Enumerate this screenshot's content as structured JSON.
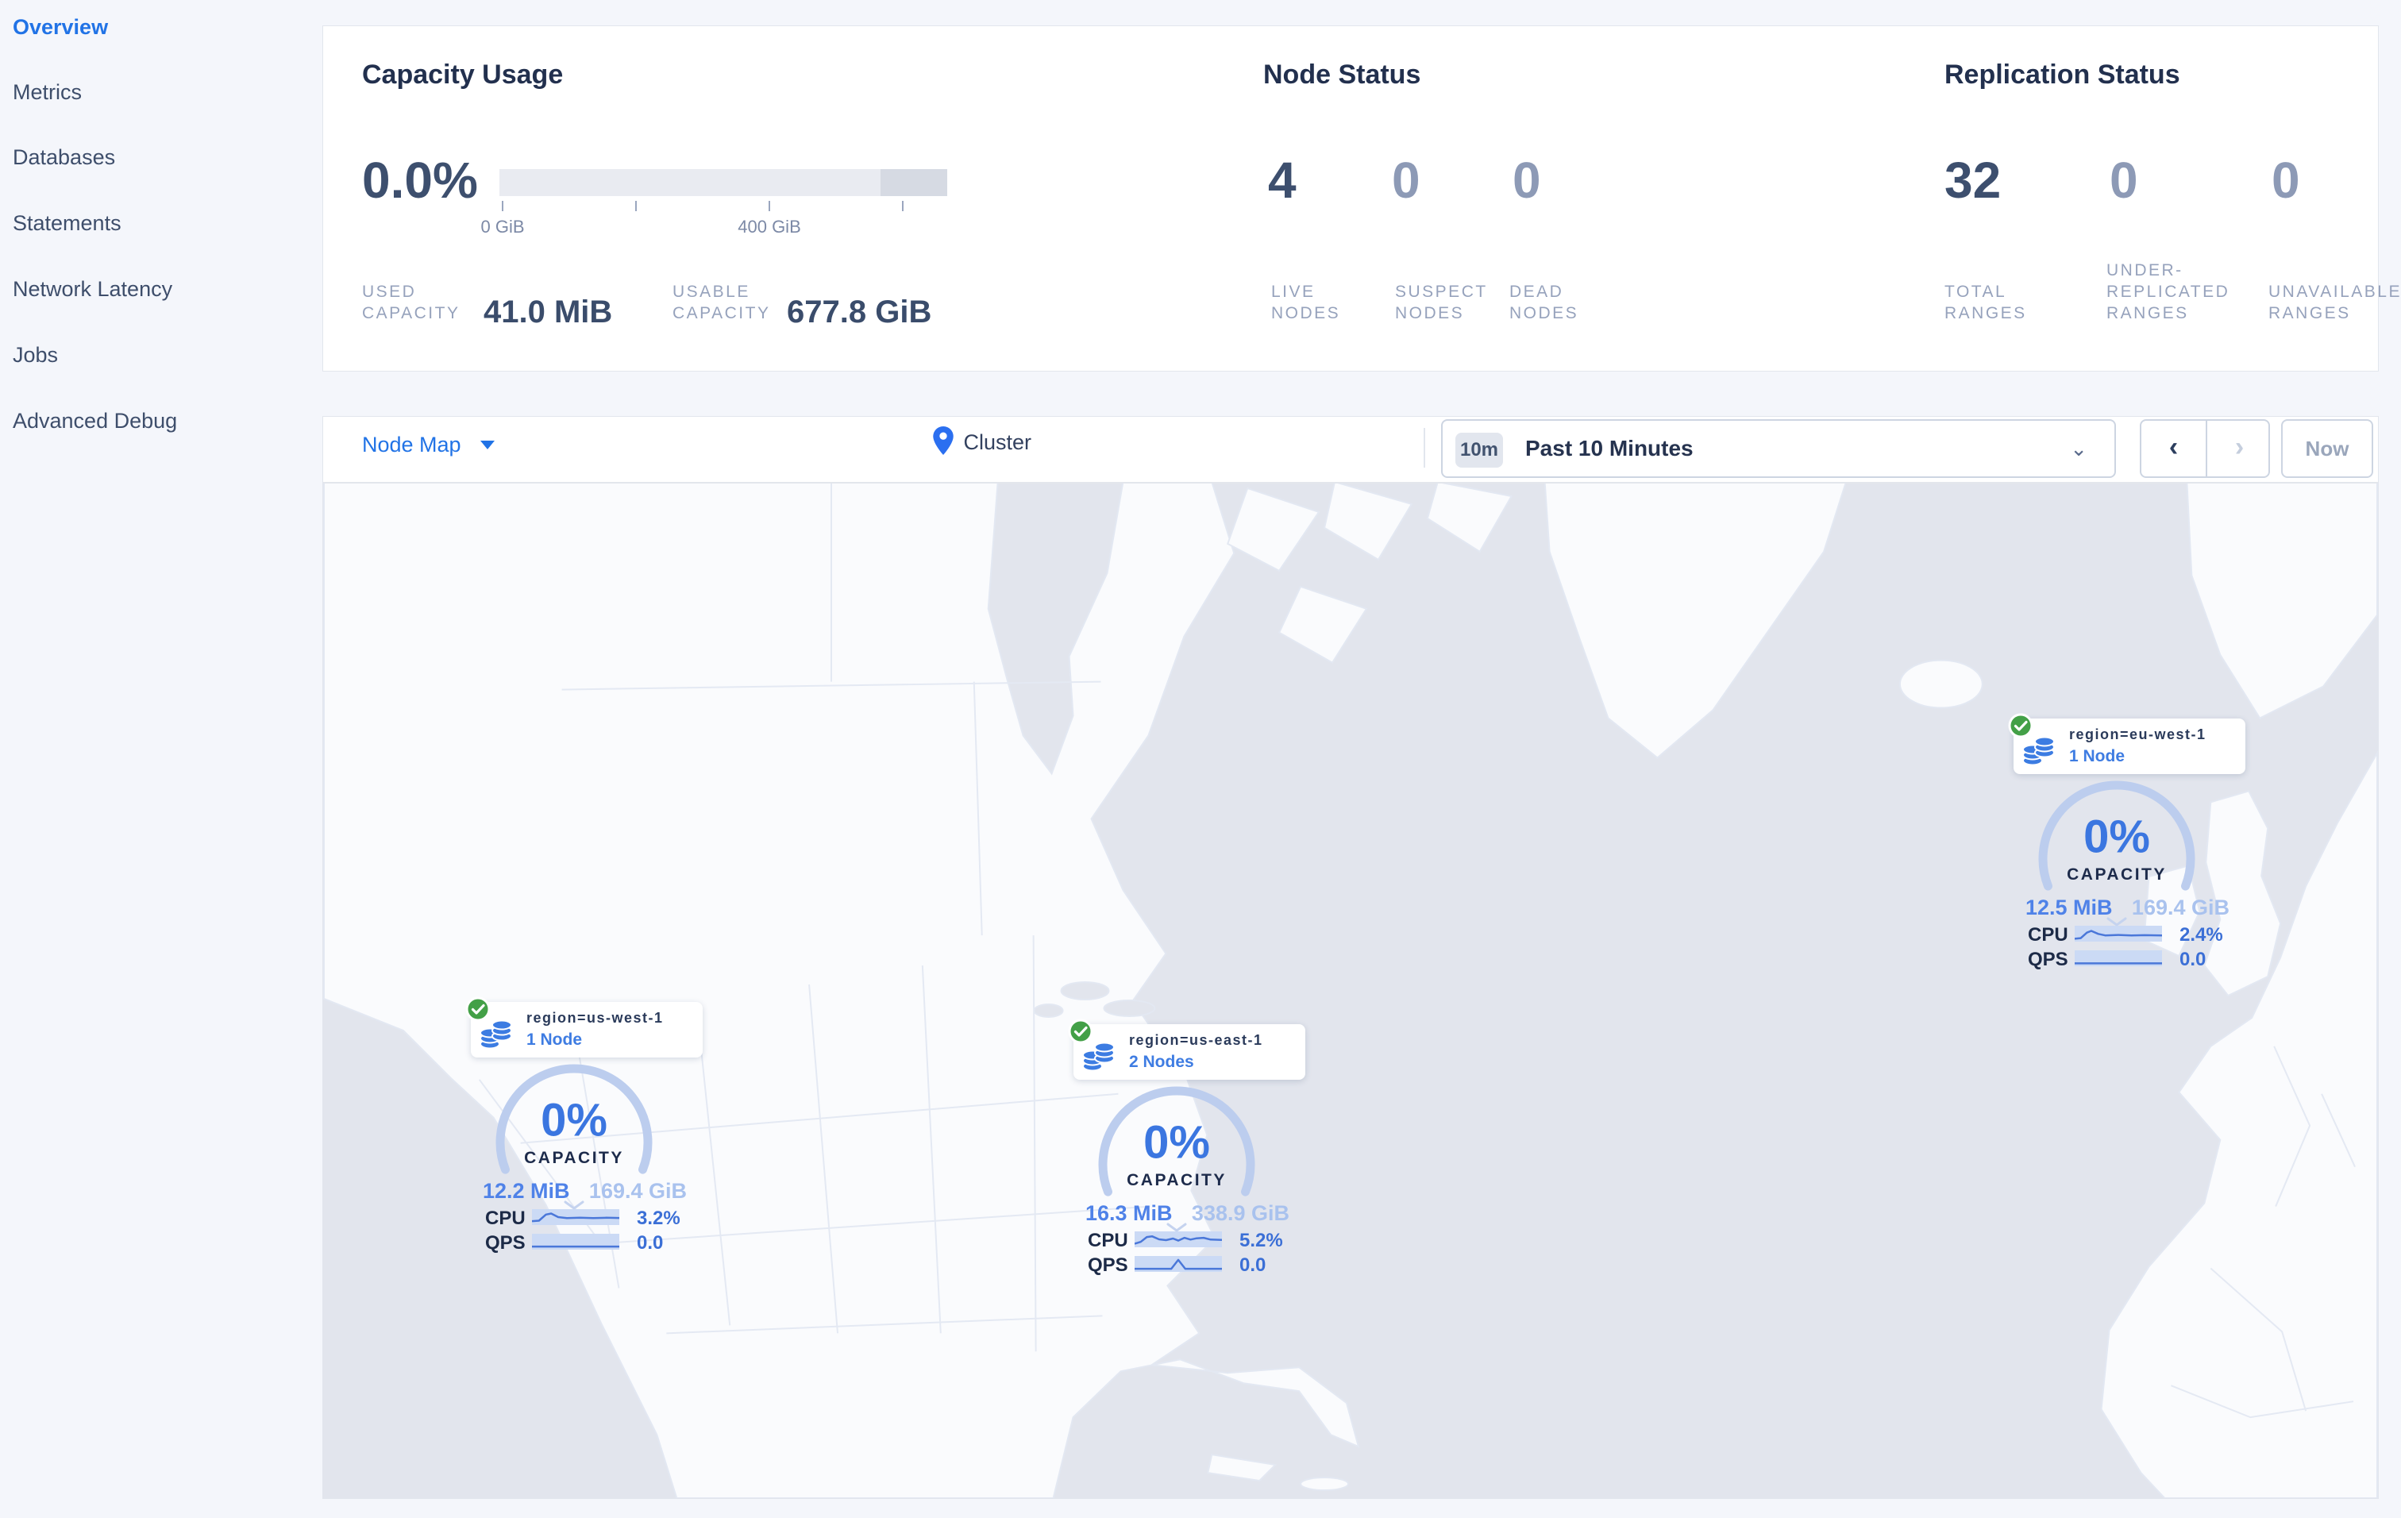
{
  "sidebar": {
    "items": [
      {
        "label": "Overview",
        "active": true
      },
      {
        "label": "Metrics",
        "active": false
      },
      {
        "label": "Databases",
        "active": false
      },
      {
        "label": "Statements",
        "active": false
      },
      {
        "label": "Network Latency",
        "active": false
      },
      {
        "label": "Jobs",
        "active": false
      },
      {
        "label": "Advanced Debug",
        "active": false
      }
    ]
  },
  "summary": {
    "capacity": {
      "title": "Capacity Usage",
      "percent": "0.0%",
      "tick_labels": [
        "0 GiB",
        "400 GiB"
      ],
      "stats": [
        {
          "label": "USED CAPACITY",
          "value": "41.0 MiB"
        },
        {
          "label": "USABLE CAPACITY",
          "value": "677.8 GiB"
        }
      ]
    },
    "nodes": {
      "title": "Node Status",
      "stats": [
        {
          "value": "4",
          "label": "LIVE NODES",
          "emphasis": true
        },
        {
          "value": "0",
          "label": "SUSPECT NODES",
          "emphasis": false
        },
        {
          "value": "0",
          "label": "DEAD NODES",
          "emphasis": false
        }
      ]
    },
    "replication": {
      "title": "Replication Status",
      "stats": [
        {
          "value": "32",
          "label": "TOTAL RANGES",
          "emphasis": true
        },
        {
          "value": "0",
          "label": "UNDER-REPLICATED RANGES",
          "emphasis": false
        },
        {
          "value": "0",
          "label": "UNAVAILABLE RANGES",
          "emphasis": false
        }
      ]
    }
  },
  "toolbar": {
    "view_selector": "Node Map",
    "breadcrumb": "Cluster",
    "time_badge": "10m",
    "time_label": "Past 10 Minutes",
    "prev_arrow": "‹",
    "next_arrow": "›",
    "now_label": "Now"
  },
  "map": {
    "markers": [
      {
        "region": "region=us-west-1",
        "nodes": "1 Node",
        "capacity_pct": "0%",
        "capacity_label": "CAPACITY",
        "used": "12.2 MiB",
        "usable": "169.4 GiB",
        "cpu_label": "CPU",
        "cpu": "3.2%",
        "qps_label": "QPS",
        "qps": "0.0"
      },
      {
        "region": "region=us-east-1",
        "nodes": "2 Nodes",
        "capacity_pct": "0%",
        "capacity_label": "CAPACITY",
        "used": "16.3 MiB",
        "usable": "338.9 GiB",
        "cpu_label": "CPU",
        "cpu": "5.2%",
        "qps_label": "QPS",
        "qps": "0.0"
      },
      {
        "region": "region=eu-west-1",
        "nodes": "1 Node",
        "capacity_pct": "0%",
        "capacity_label": "CAPACITY",
        "used": "12.5 MiB",
        "usable": "169.4 GiB",
        "cpu_label": "CPU",
        "cpu": "2.4%",
        "qps_label": "QPS",
        "qps": "0.0"
      }
    ]
  },
  "colors": {
    "accent_blue": "#2173e6",
    "marker_blue": "#3b76e0",
    "gauge_arc": "#bccdee",
    "status_green": "#43a047",
    "ocean": "#e2e5ed",
    "land": "#fafbfd"
  }
}
